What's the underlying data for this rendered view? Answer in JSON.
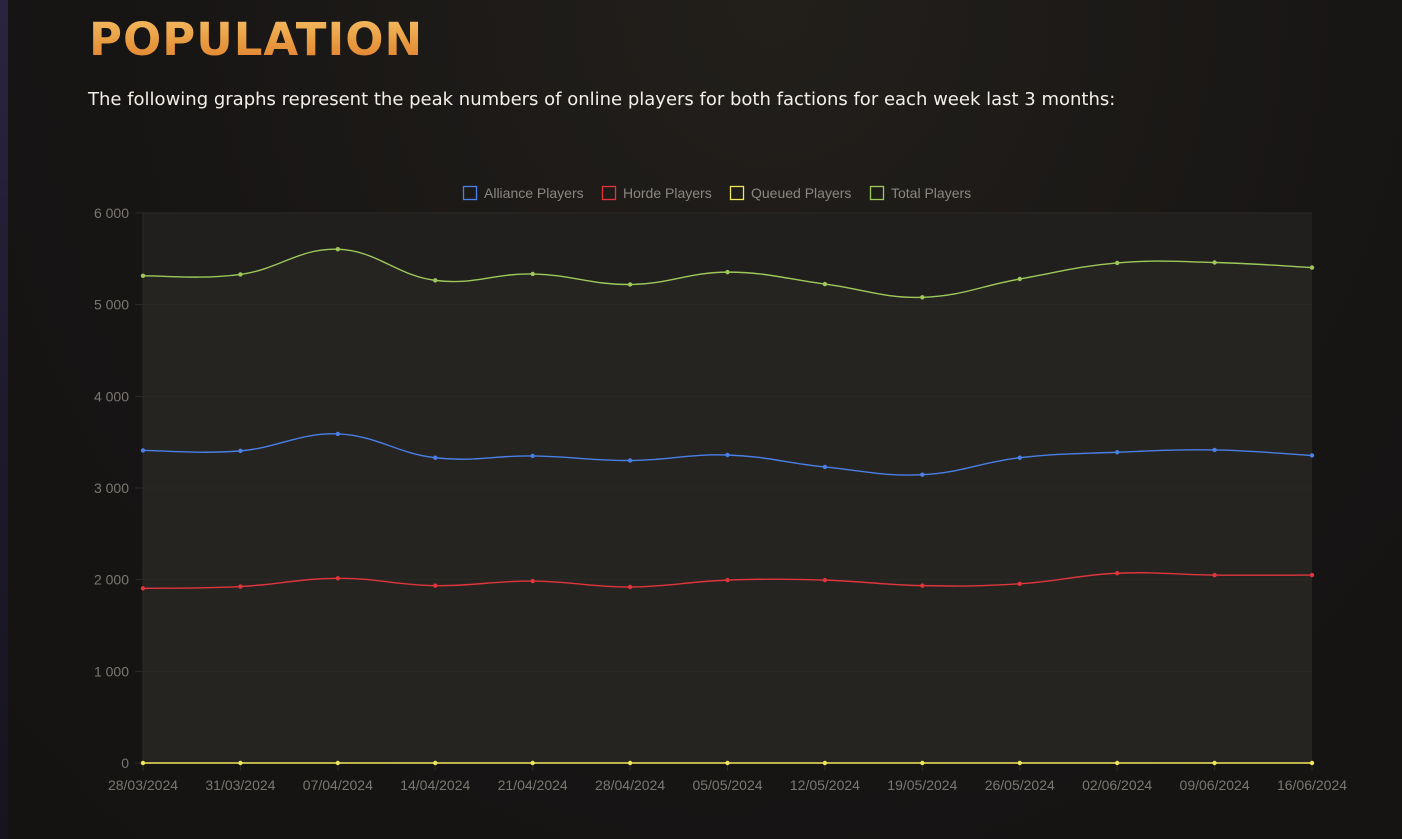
{
  "page": {
    "title": "POPULATION",
    "intro": "The following graphs represent the peak numbers of online players for both factions for each week last 3 months:"
  },
  "colors": {
    "accent": "#e89a3f",
    "background": "#181614",
    "plot_background": "#211f1d",
    "grid": "#2c2a27",
    "tick_text": "#7a7772",
    "legend_text": "#8a8782"
  },
  "chart_data": {
    "type": "line",
    "title": "",
    "xlabel": "",
    "ylabel": "",
    "legend_position": "top-center",
    "grid": true,
    "ylim": [
      0,
      6000
    ],
    "yticks": [
      0,
      1000,
      2000,
      3000,
      4000,
      5000,
      6000
    ],
    "ytick_labels": [
      "0",
      "1 000",
      "2 000",
      "3 000",
      "4 000",
      "5 000",
      "6 000"
    ],
    "categories": [
      "28/03/2024",
      "31/03/2024",
      "07/04/2024",
      "14/04/2024",
      "21/04/2024",
      "28/04/2024",
      "05/05/2024",
      "12/05/2024",
      "19/05/2024",
      "26/05/2024",
      "02/06/2024",
      "09/06/2024",
      "16/06/2024"
    ],
    "series": [
      {
        "name": "Alliance Players",
        "color": "#4a7fe6",
        "values": [
          3410,
          3405,
          3590,
          3330,
          3350,
          3300,
          3360,
          3230,
          3145,
          3330,
          3390,
          3415,
          3355
        ]
      },
      {
        "name": "Horde Players",
        "color": "#e0353c",
        "values": [
          1905,
          1925,
          2015,
          1935,
          1985,
          1920,
          1995,
          1995,
          1935,
          1955,
          2070,
          2050,
          2050
        ]
      },
      {
        "name": "Queued Players",
        "color": "#f0e65a",
        "values": [
          0,
          0,
          0,
          0,
          0,
          0,
          0,
          0,
          0,
          0,
          0,
          0,
          0
        ]
      },
      {
        "name": "Total Players",
        "color": "#9ec95a",
        "values": [
          5315,
          5330,
          5605,
          5265,
          5335,
          5220,
          5355,
          5225,
          5080,
          5280,
          5455,
          5460,
          5405
        ]
      }
    ]
  }
}
